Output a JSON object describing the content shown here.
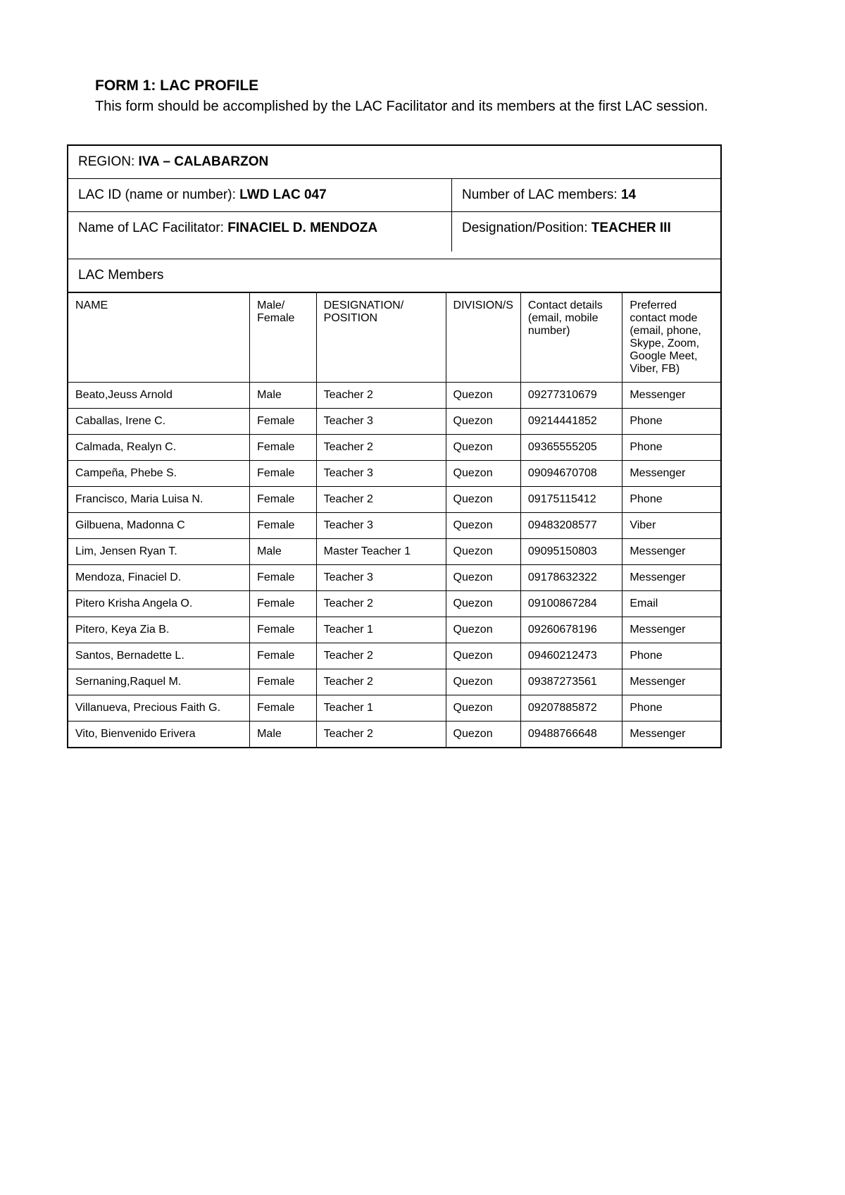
{
  "form": {
    "title": "FORM 1: LAC PROFILE",
    "subtitle": "This form should be accomplished by the LAC Facilitator and its members at the first LAC session."
  },
  "header": {
    "region_label": "REGION: ",
    "region_value": "IVA – CALABARZON",
    "lacid_label": "LAC ID (name or number): ",
    "lacid_value": "LWD LAC 047",
    "num_label": "Number of LAC members: ",
    "num_value": "14",
    "facilitator_label": "Name of LAC Facilitator: ",
    "facilitator_value": "FINACIEL D. MENDOZA",
    "designation_label": "Designation/Position: ",
    "designation_value": "TEACHER III",
    "members_heading": "LAC Members"
  },
  "columns": {
    "name": "NAME",
    "sex": "Male/ Female",
    "designation": "DESIGNATION/ POSITION",
    "division": "DIVISION/S",
    "contact": "Contact details (email, mobile number)",
    "mode": "Preferred contact mode (email, phone, Skype, Zoom, Google Meet, Viber, FB)"
  },
  "rows": [
    {
      "name": "Beato,Jeuss Arnold",
      "sex": "Male",
      "designation": "Teacher 2",
      "division": "Quezon",
      "contact": "09277310679",
      "mode": "Messenger"
    },
    {
      "name": "Caballas, Irene C.",
      "sex": "Female",
      "designation": "Teacher 3",
      "division": "Quezon",
      "contact": "09214441852",
      "mode": "Phone"
    },
    {
      "name": "Calmada, Realyn C.",
      "sex": "Female",
      "designation": "Teacher 2",
      "division": "Quezon",
      "contact": "09365555205",
      "mode": "Phone"
    },
    {
      "name": "Campeña, Phebe S.",
      "sex": "Female",
      "designation": "Teacher 3",
      "division": "Quezon",
      "contact": "09094670708",
      "mode": "Messenger"
    },
    {
      "name": "Francisco, Maria Luisa N.",
      "sex": "Female",
      "designation": "Teacher 2",
      "division": "Quezon",
      "contact": "09175115412",
      "mode": "Phone"
    },
    {
      "name": "Gilbuena, Madonna C",
      "sex": "Female",
      "designation": "Teacher 3",
      "division": "Quezon",
      "contact": "09483208577",
      "mode": "Viber"
    },
    {
      "name": "Lim, Jensen Ryan T.",
      "sex": "Male",
      "designation": "Master Teacher 1",
      "division": "Quezon",
      "contact": "09095150803",
      "mode": "Messenger"
    },
    {
      "name": "Mendoza, Finaciel D.",
      "sex": "Female",
      "designation": "Teacher 3",
      "division": "Quezon",
      "contact": "09178632322",
      "mode": "Messenger"
    },
    {
      "name": "Pitero Krisha Angela O.",
      "sex": "Female",
      "designation": "Teacher 2",
      "division": "Quezon",
      "contact": "09100867284",
      "mode": "Email"
    },
    {
      "name": "Pitero, Keya Zia B.",
      "sex": "Female",
      "designation": "Teacher 1",
      "division": "Quezon",
      "contact": "09260678196",
      "mode": "Messenger"
    },
    {
      "name": "Santos, Bernadette L.",
      "sex": "Female",
      "designation": "Teacher 2",
      "division": "Quezon",
      "contact": "09460212473",
      "mode": "Phone"
    },
    {
      "name": "Sernaning,Raquel M.",
      "sex": "Female",
      "designation": "Teacher 2",
      "division": "Quezon",
      "contact": "09387273561",
      "mode": "Messenger"
    },
    {
      "name": "Villanueva, Precious Faith G.",
      "sex": "Female",
      "designation": "Teacher 1",
      "division": "Quezon",
      "contact": "09207885872",
      "mode": "Phone"
    },
    {
      "name": "Vito, Bienvenido Erivera",
      "sex": "Male",
      "designation": "Teacher 2",
      "division": "Quezon",
      "contact": "09488766648",
      "mode": "Messenger"
    }
  ]
}
